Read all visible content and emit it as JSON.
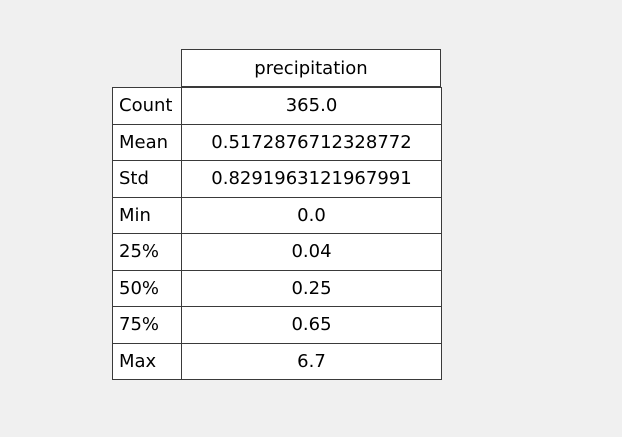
{
  "chart_data": {
    "type": "table",
    "columns": [
      "precipitation"
    ],
    "rows": [
      {
        "label": "Count",
        "value": "365.0"
      },
      {
        "label": "Mean",
        "value": "0.5172876712328772"
      },
      {
        "label": "Std",
        "value": "0.8291963121967991"
      },
      {
        "label": "Min",
        "value": "0.0"
      },
      {
        "label": "25%",
        "value": "0.04"
      },
      {
        "label": "50%",
        "value": "0.25"
      },
      {
        "label": "75%",
        "value": "0.65"
      },
      {
        "label": "Max",
        "value": "6.7"
      }
    ]
  }
}
